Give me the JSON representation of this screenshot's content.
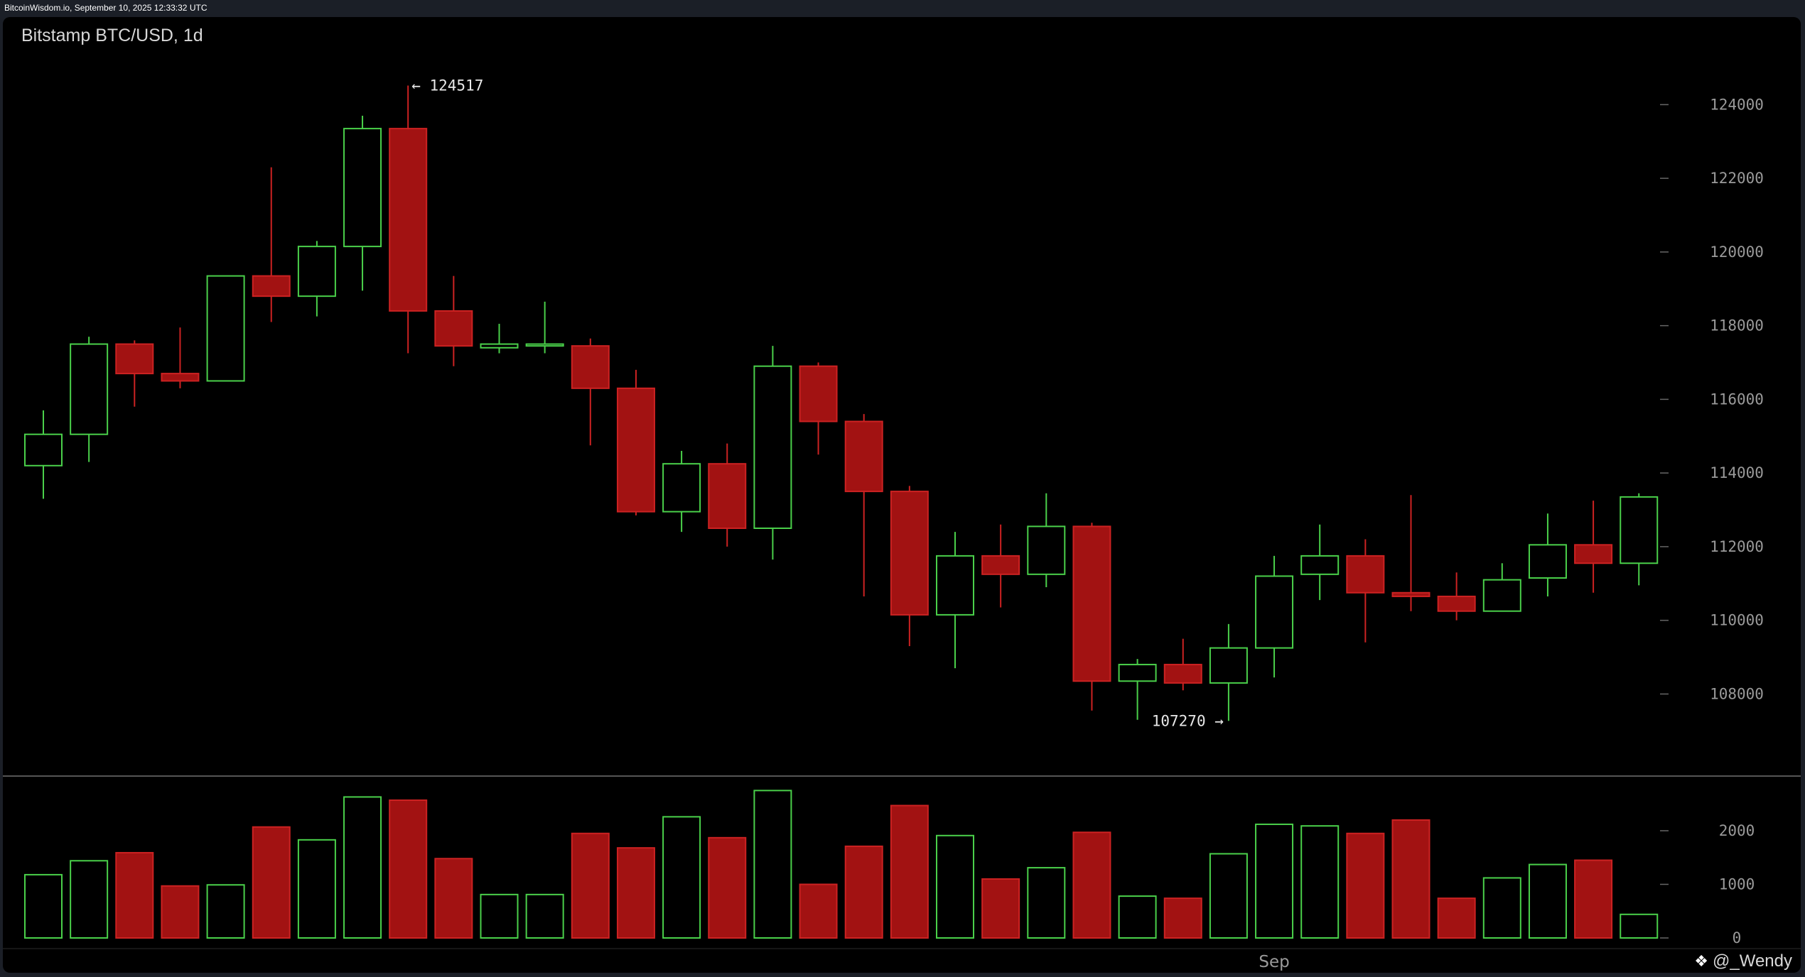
{
  "header_text": "BitcoinWisdom.io, September 10, 2025 12:33:32 UTC",
  "chart_title": "Bitstamp BTC/USD, 1d",
  "watermark": {
    "icon": "binance-diamond-icon",
    "text": "@_Wendy"
  },
  "colors": {
    "up": "#4ad04a",
    "down": "#a21212",
    "down_border": "#cc2222",
    "text": "#d8d8d8",
    "axis": "#9a9a9a",
    "background": "#000000"
  },
  "chart_data": [
    {
      "type": "candlestick",
      "title": "Bitstamp BTC/USD, 1d",
      "ylim": [
        106100,
        125800
      ],
      "yticks": [
        108000,
        110000,
        112000,
        114000,
        116000,
        118000,
        120000,
        122000,
        124000
      ],
      "annotations": [
        {
          "text": "← 124517",
          "value": 124517,
          "candle_index": 8,
          "side": "right"
        },
        {
          "text": "107270 →",
          "value": 107270,
          "candle_index": 26,
          "side": "left"
        }
      ],
      "candles": [
        {
          "o": 114200,
          "h": 115700,
          "l": 113300,
          "c": 115050
        },
        {
          "o": 115050,
          "h": 117700,
          "l": 114300,
          "c": 117500
        },
        {
          "o": 117500,
          "h": 117600,
          "l": 115800,
          "c": 116700
        },
        {
          "o": 116700,
          "h": 117950,
          "l": 116300,
          "c": 116500
        },
        {
          "o": 116500,
          "h": 119350,
          "l": 116500,
          "c": 119350
        },
        {
          "o": 119350,
          "h": 122300,
          "l": 118100,
          "c": 118800
        },
        {
          "o": 118800,
          "h": 120300,
          "l": 118250,
          "c": 120150
        },
        {
          "o": 120150,
          "h": 123700,
          "l": 118950,
          "c": 123350
        },
        {
          "o": 123350,
          "h": 124517,
          "l": 117250,
          "c": 118400
        },
        {
          "o": 118400,
          "h": 119350,
          "l": 116900,
          "c": 117450
        },
        {
          "o": 117400,
          "h": 118050,
          "l": 117250,
          "c": 117500
        },
        {
          "o": 117450,
          "h": 118650,
          "l": 117250,
          "c": 117500
        },
        {
          "o": 117450,
          "h": 117650,
          "l": 114750,
          "c": 116300
        },
        {
          "o": 116300,
          "h": 116800,
          "l": 112850,
          "c": 112950
        },
        {
          "o": 112950,
          "h": 114600,
          "l": 112400,
          "c": 114250
        },
        {
          "o": 114250,
          "h": 114800,
          "l": 112000,
          "c": 112500
        },
        {
          "o": 112500,
          "h": 117450,
          "l": 111650,
          "c": 116900
        },
        {
          "o": 116900,
          "h": 117000,
          "l": 114500,
          "c": 115400
        },
        {
          "o": 115400,
          "h": 115600,
          "l": 110650,
          "c": 113500
        },
        {
          "o": 113500,
          "h": 113650,
          "l": 109300,
          "c": 110150
        },
        {
          "o": 110150,
          "h": 112400,
          "l": 108700,
          "c": 111750
        },
        {
          "o": 111750,
          "h": 112600,
          "l": 110350,
          "c": 111250
        },
        {
          "o": 111250,
          "h": 113450,
          "l": 110900,
          "c": 112550
        },
        {
          "o": 112550,
          "h": 112650,
          "l": 107550,
          "c": 108350
        },
        {
          "o": 108350,
          "h": 108950,
          "l": 107300,
          "c": 108800
        },
        {
          "o": 108800,
          "h": 109500,
          "l": 108100,
          "c": 108300
        },
        {
          "o": 108300,
          "h": 109900,
          "l": 107270,
          "c": 109250
        },
        {
          "o": 109250,
          "h": 111750,
          "l": 108450,
          "c": 111200
        },
        {
          "o": 111250,
          "h": 112600,
          "l": 110550,
          "c": 111750
        },
        {
          "o": 111750,
          "h": 112200,
          "l": 109400,
          "c": 110750
        },
        {
          "o": 110750,
          "h": 113400,
          "l": 110250,
          "c": 110650
        },
        {
          "o": 110650,
          "h": 111300,
          "l": 110000,
          "c": 110250
        },
        {
          "o": 110250,
          "h": 111550,
          "l": 110250,
          "c": 111100
        },
        {
          "o": 111150,
          "h": 112900,
          "l": 110650,
          "c": 112050
        },
        {
          "o": 112050,
          "h": 113250,
          "l": 110750,
          "c": 111550
        },
        {
          "o": 111550,
          "h": 113450,
          "l": 110950,
          "c": 113350
        }
      ]
    },
    {
      "type": "bar",
      "title": "volume",
      "ylim": [
        0,
        3000
      ],
      "yticks": [
        0,
        1000,
        2000
      ],
      "xlabel": "Sep",
      "xlabel_candle_index": 27,
      "values": [
        1180,
        1440,
        1590,
        970,
        990,
        2070,
        1830,
        2630,
        2570,
        1480,
        810,
        810,
        1950,
        1680,
        2260,
        1870,
        2750,
        1000,
        1710,
        2470,
        1910,
        1100,
        1310,
        1970,
        780,
        740,
        1570,
        2120,
        2090,
        1950,
        2200,
        740,
        1120,
        1370,
        1450,
        440
      ]
    }
  ]
}
